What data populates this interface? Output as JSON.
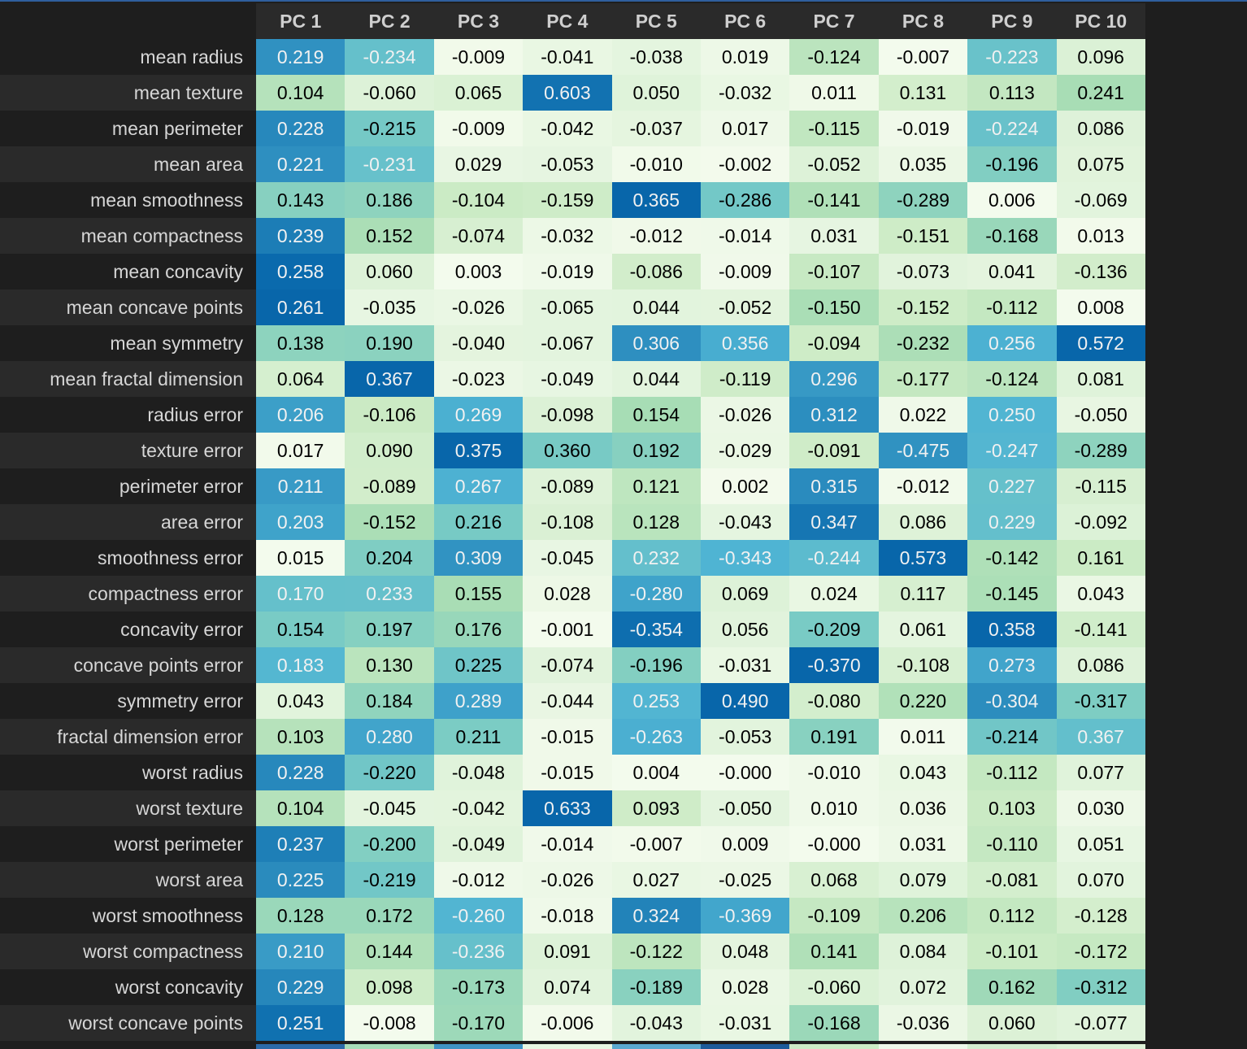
{
  "chart_data": {
    "type": "heatmap",
    "columns": [
      "PC 1",
      "PC 2",
      "PC 3",
      "PC 4",
      "PC 5",
      "PC 6",
      "PC 7",
      "PC 8",
      "PC 9",
      "PC 10"
    ],
    "rows": [
      {
        "label": "mean radius",
        "values": [
          0.219,
          -0.234,
          -0.009,
          -0.041,
          -0.038,
          0.019,
          -0.124,
          -0.007,
          -0.223,
          0.096
        ]
      },
      {
        "label": "mean texture",
        "values": [
          0.104,
          -0.06,
          0.065,
          0.603,
          0.05,
          -0.032,
          0.011,
          0.131,
          0.113,
          0.241
        ]
      },
      {
        "label": "mean perimeter",
        "values": [
          0.228,
          -0.215,
          -0.009,
          -0.042,
          -0.037,
          0.017,
          -0.115,
          -0.019,
          -0.224,
          0.086
        ]
      },
      {
        "label": "mean area",
        "values": [
          0.221,
          -0.231,
          0.029,
          -0.053,
          -0.01,
          -0.002,
          -0.052,
          0.035,
          -0.196,
          0.075
        ]
      },
      {
        "label": "mean smoothness",
        "values": [
          0.143,
          0.186,
          -0.104,
          -0.159,
          0.365,
          -0.286,
          -0.141,
          -0.289,
          0.006,
          -0.069
        ]
      },
      {
        "label": "mean compactness",
        "values": [
          0.239,
          0.152,
          -0.074,
          -0.032,
          -0.012,
          -0.014,
          0.031,
          -0.151,
          -0.168,
          0.013
        ]
      },
      {
        "label": "mean concavity",
        "values": [
          0.258,
          0.06,
          0.003,
          -0.019,
          -0.086,
          -0.009,
          -0.107,
          -0.073,
          0.041,
          -0.136
        ]
      },
      {
        "label": "mean concave points",
        "values": [
          0.261,
          -0.035,
          -0.026,
          -0.065,
          0.044,
          -0.052,
          -0.15,
          -0.152,
          -0.112,
          0.008
        ]
      },
      {
        "label": "mean symmetry",
        "values": [
          0.138,
          0.19,
          -0.04,
          -0.067,
          0.306,
          0.356,
          -0.094,
          -0.232,
          0.256,
          0.572
        ]
      },
      {
        "label": "mean fractal dimension",
        "values": [
          0.064,
          0.367,
          -0.023,
          -0.049,
          0.044,
          -0.119,
          0.296,
          -0.177,
          -0.124,
          0.081
        ]
      },
      {
        "label": "radius error",
        "values": [
          0.206,
          -0.106,
          0.269,
          -0.098,
          0.154,
          -0.026,
          0.312,
          0.022,
          0.25,
          -0.05
        ]
      },
      {
        "label": "texture error",
        "values": [
          0.017,
          0.09,
          0.375,
          0.36,
          0.192,
          -0.029,
          -0.091,
          -0.475,
          -0.247,
          -0.289
        ]
      },
      {
        "label": "perimeter error",
        "values": [
          0.211,
          -0.089,
          0.267,
          -0.089,
          0.121,
          0.002,
          0.315,
          -0.012,
          0.227,
          -0.115
        ]
      },
      {
        "label": "area error",
        "values": [
          0.203,
          -0.152,
          0.216,
          -0.108,
          0.128,
          -0.043,
          0.347,
          0.086,
          0.229,
          -0.092
        ]
      },
      {
        "label": "smoothness error",
        "values": [
          0.015,
          0.204,
          0.309,
          -0.045,
          0.232,
          -0.343,
          -0.244,
          0.573,
          -0.142,
          0.161
        ]
      },
      {
        "label": "compactness error",
        "values": [
          0.17,
          0.233,
          0.155,
          0.028,
          -0.28,
          0.069,
          0.024,
          0.117,
          -0.145,
          0.043
        ]
      },
      {
        "label": "concavity error",
        "values": [
          0.154,
          0.197,
          0.176,
          -0.001,
          -0.354,
          0.056,
          -0.209,
          0.061,
          0.358,
          -0.141
        ]
      },
      {
        "label": "concave points error",
        "values": [
          0.183,
          0.13,
          0.225,
          -0.074,
          -0.196,
          -0.031,
          -0.37,
          -0.108,
          0.273,
          0.086
        ]
      },
      {
        "label": "symmetry error",
        "values": [
          0.043,
          0.184,
          0.289,
          -0.044,
          0.253,
          0.49,
          -0.08,
          0.22,
          -0.304,
          -0.317
        ]
      },
      {
        "label": "fractal dimension error",
        "values": [
          0.103,
          0.28,
          0.211,
          -0.015,
          -0.263,
          -0.053,
          0.191,
          0.011,
          -0.214,
          0.367
        ]
      },
      {
        "label": "worst radius",
        "values": [
          0.228,
          -0.22,
          -0.048,
          -0.015,
          0.004,
          -0.0,
          -0.01,
          0.043,
          -0.112,
          0.077
        ]
      },
      {
        "label": "worst texture",
        "values": [
          0.104,
          -0.045,
          -0.042,
          0.633,
          0.093,
          -0.05,
          0.01,
          0.036,
          0.103,
          0.03
        ]
      },
      {
        "label": "worst perimeter",
        "values": [
          0.237,
          -0.2,
          -0.049,
          -0.014,
          -0.007,
          0.009,
          -0.0,
          0.031,
          -0.11,
          0.051
        ]
      },
      {
        "label": "worst area",
        "values": [
          0.225,
          -0.219,
          -0.012,
          -0.026,
          0.027,
          -0.025,
          0.068,
          0.079,
          -0.081,
          0.07
        ]
      },
      {
        "label": "worst smoothness",
        "values": [
          0.128,
          0.172,
          -0.26,
          -0.018,
          0.324,
          -0.369,
          -0.109,
          0.206,
          0.112,
          -0.128
        ]
      },
      {
        "label": "worst compactness",
        "values": [
          0.21,
          0.144,
          -0.236,
          0.091,
          -0.122,
          0.048,
          0.141,
          0.084,
          -0.101,
          -0.172
        ]
      },
      {
        "label": "worst concavity",
        "values": [
          0.229,
          0.098,
          -0.173,
          0.074,
          -0.189,
          0.028,
          -0.06,
          0.072,
          0.162,
          -0.312
        ]
      },
      {
        "label": "worst concave points",
        "values": [
          0.251,
          -0.008,
          -0.17,
          -0.006,
          -0.043,
          -0.031,
          -0.168,
          -0.036,
          0.06,
          -0.077
        ]
      }
    ],
    "colormap": "GnBu (per-column, by absolute value)",
    "colors": {
      "background": "#1e1e1e",
      "header_bg": "#2a2a2a",
      "row_alt_bg": "#2a2a2a",
      "label_text": "#d6d6d6",
      "light_cell_text": "#000000",
      "dark_cell_text": "#f1f1f1"
    }
  }
}
